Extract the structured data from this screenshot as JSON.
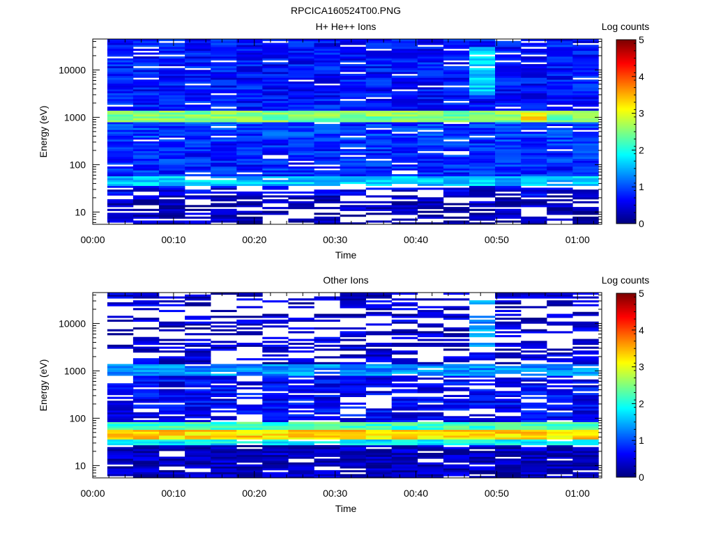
{
  "figure_title": "RPCICA160524T00.PNG",
  "colors": {
    "background": "#ffffff",
    "axis": "#000000"
  },
  "chart_data": [
    {
      "type": "heatmap",
      "title": "H+ He++ Ions",
      "xlabel": "Time",
      "ylabel": "Energy (eV)",
      "x_ticks": [
        "00:00",
        "00:10",
        "00:20",
        "00:30",
        "00:40",
        "00:50",
        "01:00"
      ],
      "x_tick_minutes": [
        0,
        10,
        20,
        30,
        40,
        50,
        60
      ],
      "xlim_minutes": [
        0,
        63
      ],
      "y_scale": "log",
      "ylim": [
        5.5,
        45000
      ],
      "y_ticks": [
        "10",
        "100",
        "1000",
        "10000"
      ],
      "y_tick_values": [
        10,
        100,
        1000,
        10000
      ],
      "colorbar_label": "Log counts",
      "colorbar_ticks": [
        "0",
        "1",
        "2",
        "3",
        "4",
        "5"
      ],
      "colorbar_range": [
        0,
        5
      ],
      "time_bins_minutes": [
        1.8,
        5.0,
        8.2,
        11.4,
        14.6,
        17.8,
        21.0,
        24.2,
        27.4,
        30.6,
        33.8,
        37.0,
        40.2,
        43.4,
        46.6,
        49.8,
        53.0,
        56.2,
        59.4,
        62.6
      ],
      "bands": [
        {
          "e_low": 5.5,
          "e_high": 22,
          "value": 0.25
        },
        {
          "e_low": 22,
          "e_high": 35,
          "value": 0.5
        },
        {
          "e_low": 35,
          "e_high": 60,
          "value": 1.6
        },
        {
          "e_low": 60,
          "e_high": 300,
          "value": 0.8
        },
        {
          "e_low": 300,
          "e_high": 800,
          "value": 0.9
        },
        {
          "e_low": 800,
          "e_high": 1400,
          "value": 2.5
        },
        {
          "e_low": 1400,
          "e_high": 45000,
          "value": 0.7
        }
      ],
      "hot_spots": [
        {
          "time_minutes": 47.5,
          "e_low": 3000,
          "e_high": 30000,
          "value": 1.6
        },
        {
          "time_minutes": 54.5,
          "e_low": 900,
          "e_high": 1300,
          "value": 3.2
        }
      ]
    },
    {
      "type": "heatmap",
      "title": "Other Ions",
      "xlabel": "Time",
      "ylabel": "Energy (eV)",
      "x_ticks": [
        "00:00",
        "00:10",
        "00:20",
        "00:30",
        "00:40",
        "00:50",
        "01:00"
      ],
      "x_tick_minutes": [
        0,
        10,
        20,
        30,
        40,
        50,
        60
      ],
      "xlim_minutes": [
        0,
        63
      ],
      "y_scale": "log",
      "ylim": [
        5.5,
        45000
      ],
      "y_ticks": [
        "10",
        "100",
        "1000",
        "10000"
      ],
      "y_tick_values": [
        10,
        100,
        1000,
        10000
      ],
      "colorbar_label": "Log counts",
      "colorbar_ticks": [
        "0",
        "1",
        "2",
        "3",
        "4",
        "5"
      ],
      "colorbar_range": [
        0,
        5
      ],
      "time_bins_minutes": [
        1.8,
        5.0,
        8.2,
        11.4,
        14.6,
        17.8,
        21.0,
        24.2,
        27.4,
        30.6,
        33.8,
        37.0,
        40.2,
        43.4,
        46.6,
        49.8,
        53.0,
        56.2,
        59.4,
        62.6
      ],
      "bands": [
        {
          "e_low": 5.5,
          "e_high": 28,
          "value": 0.3
        },
        {
          "e_low": 28,
          "e_high": 36,
          "value": 1.8
        },
        {
          "e_low": 36,
          "e_high": 55,
          "value": 3.3
        },
        {
          "e_low": 55,
          "e_high": 80,
          "value": 2.2
        },
        {
          "e_low": 80,
          "e_high": 800,
          "value": 0.6
        },
        {
          "e_low": 800,
          "e_high": 1400,
          "value": 1.3
        },
        {
          "e_low": 1400,
          "e_high": 45000,
          "value": 0.4
        }
      ],
      "hot_spots": [
        {
          "time_minutes": 47.5,
          "e_low": 3000,
          "e_high": 30000,
          "value": 1.3
        }
      ]
    }
  ]
}
